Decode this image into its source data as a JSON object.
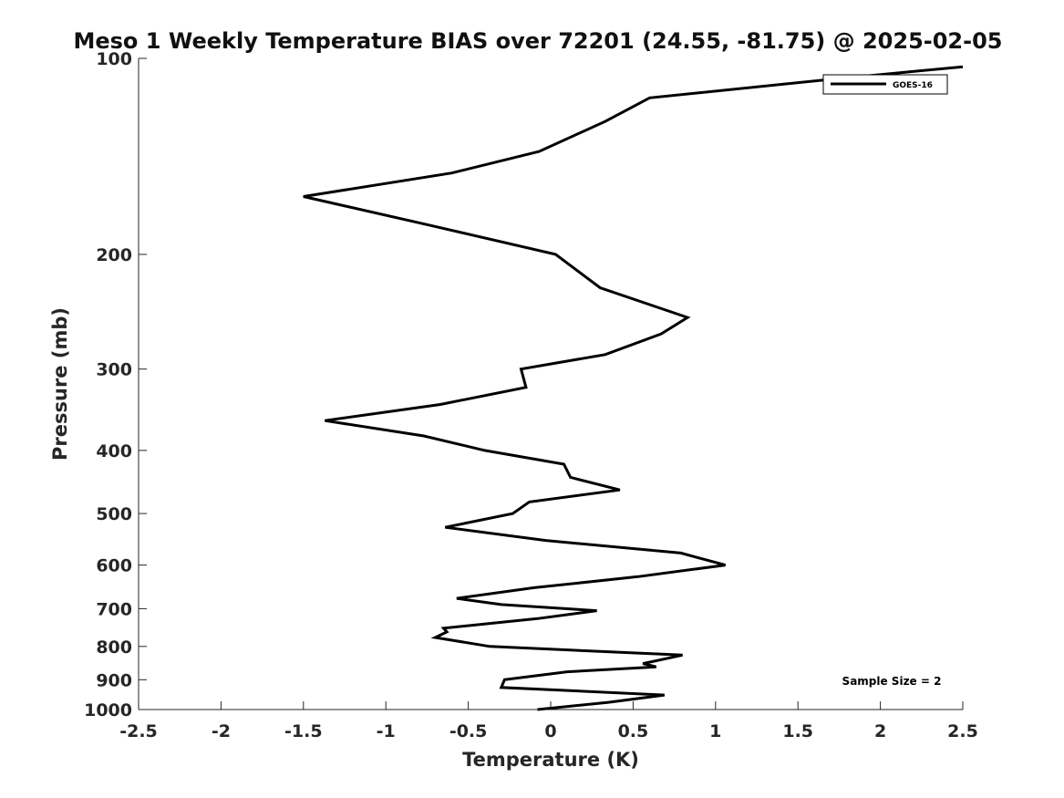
{
  "chart_data": {
    "type": "line",
    "title": "Meso 1 Weekly Temperature BIAS over 72201 (24.55, -81.75) @ 2025-02-05",
    "xlabel": "Temperature (K)",
    "ylabel": "Pressure (mb)",
    "xlim": [
      -2.5,
      2.5
    ],
    "ylim": [
      1000,
      100
    ],
    "yscale": "log",
    "x_ticks": [
      -2.5,
      -2,
      -1.5,
      -1,
      -0.5,
      0,
      0.5,
      1,
      1.5,
      2,
      2.5
    ],
    "x_tick_labels": [
      "-2.5",
      "-2",
      "-1.5",
      "-1",
      "-0.5",
      "0",
      "0.5",
      "1",
      "1.5",
      "2",
      "2.5"
    ],
    "y_ticks": [
      100,
      200,
      300,
      400,
      500,
      600,
      700,
      800,
      900,
      1000
    ],
    "y_tick_labels": [
      "100",
      "200",
      "300",
      "400",
      "500",
      "600",
      "700",
      "800",
      "900",
      "1000"
    ],
    "grid": false,
    "legend_position": "top-right",
    "annotation": "Sample Size = 2",
    "colors": {
      "line": "#000000",
      "axis": "#262626",
      "background": "#ffffff"
    },
    "series": [
      {
        "name": "GOES-16",
        "points": [
          {
            "x": 2.5,
            "y": 103
          },
          {
            "x": 1.65,
            "y": 108
          },
          {
            "x": 0.6,
            "y": 115
          },
          {
            "x": 0.33,
            "y": 125
          },
          {
            "x": -0.07,
            "y": 139
          },
          {
            "x": -0.6,
            "y": 150
          },
          {
            "x": -1.5,
            "y": 163
          },
          {
            "x": -0.75,
            "y": 180
          },
          {
            "x": 0.03,
            "y": 200
          },
          {
            "x": 0.3,
            "y": 225
          },
          {
            "x": 0.83,
            "y": 250
          },
          {
            "x": 0.67,
            "y": 265
          },
          {
            "x": 0.33,
            "y": 285
          },
          {
            "x": -0.18,
            "y": 300
          },
          {
            "x": -0.15,
            "y": 320
          },
          {
            "x": -0.67,
            "y": 340
          },
          {
            "x": -1.37,
            "y": 360
          },
          {
            "x": -0.77,
            "y": 380
          },
          {
            "x": -0.4,
            "y": 400
          },
          {
            "x": 0.08,
            "y": 420
          },
          {
            "x": 0.12,
            "y": 440
          },
          {
            "x": 0.42,
            "y": 460
          },
          {
            "x": -0.13,
            "y": 480
          },
          {
            "x": -0.23,
            "y": 500
          },
          {
            "x": -0.64,
            "y": 525
          },
          {
            "x": -0.03,
            "y": 550
          },
          {
            "x": 0.79,
            "y": 575
          },
          {
            "x": 1.06,
            "y": 600
          },
          {
            "x": 0.53,
            "y": 625
          },
          {
            "x": -0.1,
            "y": 650
          },
          {
            "x": -0.57,
            "y": 675
          },
          {
            "x": -0.3,
            "y": 690
          },
          {
            "x": 0.28,
            "y": 705
          },
          {
            "x": -0.08,
            "y": 725
          },
          {
            "x": -0.65,
            "y": 750
          },
          {
            "x": -0.63,
            "y": 760
          },
          {
            "x": -0.7,
            "y": 775
          },
          {
            "x": -0.37,
            "y": 800
          },
          {
            "x": 0.8,
            "y": 825
          },
          {
            "x": 0.56,
            "y": 850
          },
          {
            "x": 0.64,
            "y": 860
          },
          {
            "x": 0.1,
            "y": 875
          },
          {
            "x": -0.28,
            "y": 900
          },
          {
            "x": -0.3,
            "y": 925
          },
          {
            "x": 0.69,
            "y": 950
          },
          {
            "x": 0.35,
            "y": 975
          },
          {
            "x": -0.08,
            "y": 1000
          }
        ]
      }
    ]
  }
}
